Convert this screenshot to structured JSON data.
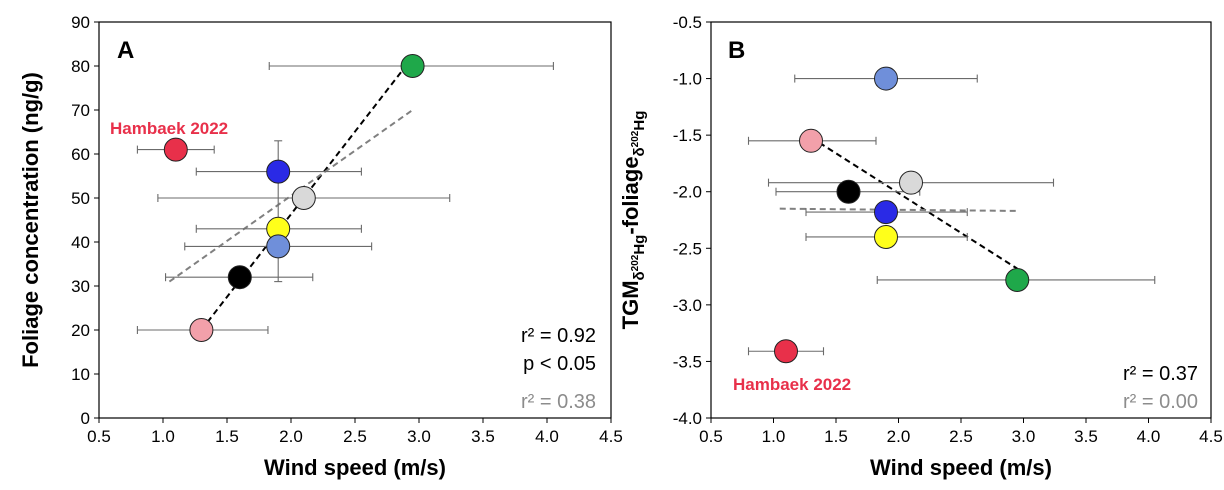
{
  "chart_data": [
    {
      "type": "scatter",
      "panel": "A",
      "xlabel": "Wind speed (m/s)",
      "ylabel": "Foliage concentration (ng/g)",
      "xlim": [
        0.5,
        4.5
      ],
      "ylim": [
        0,
        90
      ],
      "xticks": [
        "0.5",
        "1.0",
        "1.5",
        "2.0",
        "2.5",
        "3.0",
        "3.5",
        "4.0",
        "4.5"
      ],
      "yticks": [
        "0",
        "10",
        "20",
        "30",
        "40",
        "50",
        "60",
        "70",
        "80",
        "90"
      ],
      "points": [
        {
          "x": 2.95,
          "y": 80,
          "xerr": [
            1.83,
            4.05
          ],
          "color": "#1fa84a"
        },
        {
          "x": 1.1,
          "y": 61,
          "xerr": [
            0.8,
            1.4
          ],
          "color": "#e8304a"
        },
        {
          "x": 1.9,
          "y": 56,
          "xerr": [
            1.26,
            2.55
          ],
          "color": "#2a2ae6"
        },
        {
          "x": 2.1,
          "y": 50,
          "xerr": [
            0.96,
            3.24
          ],
          "color": "#d9d9d9"
        },
        {
          "x": 1.9,
          "y": 43,
          "xerr": [
            1.26,
            2.55
          ],
          "color": "#ffff1a"
        },
        {
          "x": 1.9,
          "y": 39,
          "xerr": [
            1.17,
            2.63
          ],
          "yerr": [
            31,
            63
          ],
          "color": "#6f8fda"
        },
        {
          "x": 1.6,
          "y": 32,
          "xerr": [
            1.02,
            2.17
          ],
          "color": "#000000"
        },
        {
          "x": 1.3,
          "y": 20,
          "xerr": [
            0.8,
            1.82
          ],
          "color": "#f2a0aa"
        }
      ],
      "fit_lines": [
        {
          "x": [
            1.3,
            2.95
          ],
          "y": [
            20,
            82
          ],
          "color": "#000000"
        },
        {
          "x": [
            1.05,
            2.95
          ],
          "y": [
            31,
            70
          ],
          "color": "#808080"
        }
      ],
      "annotations": {
        "panel_letter": "A",
        "reference": "Hambaek 2022",
        "r2_black": "r² = 0.92",
        "p_black": "p < 0.05",
        "r2_gray": "r² = 0.38"
      }
    },
    {
      "type": "scatter",
      "panel": "B",
      "xlabel": "Wind speed (m/s)",
      "ylabel_parts": [
        "TGM",
        "δ",
        "202",
        "Hg",
        "-foliage",
        "δ",
        "202",
        "Hg"
      ],
      "xlim": [
        0.5,
        4.5
      ],
      "ylim": [
        -4.0,
        -0.5
      ],
      "xticks": [
        "0.5",
        "1.0",
        "1.5",
        "2.0",
        "2.5",
        "3.0",
        "3.5",
        "4.0",
        "4.5"
      ],
      "yticks": [
        "-4.0",
        "-3.5",
        "-3.0",
        "-2.5",
        "-2.0",
        "-1.5",
        "-1.0",
        "-0.5"
      ],
      "points": [
        {
          "x": 1.9,
          "y": -1.0,
          "xerr": [
            1.17,
            2.63
          ],
          "color": "#6f8fda"
        },
        {
          "x": 1.3,
          "y": -1.55,
          "xerr": [
            0.8,
            1.82
          ],
          "color": "#f2a0aa"
        },
        {
          "x": 2.1,
          "y": -1.92,
          "xerr": [
            0.96,
            3.24
          ],
          "color": "#d9d9d9"
        },
        {
          "x": 1.6,
          "y": -2.0,
          "xerr": [
            1.02,
            2.17
          ],
          "color": "#000000"
        },
        {
          "x": 1.9,
          "y": -2.18,
          "xerr": [
            1.26,
            2.55
          ],
          "color": "#2a2ae6"
        },
        {
          "x": 1.9,
          "y": -2.4,
          "xerr": [
            1.26,
            2.55
          ],
          "color": "#ffff1a"
        },
        {
          "x": 2.95,
          "y": -2.78,
          "xerr": [
            1.83,
            4.05
          ],
          "color": "#1fa84a"
        },
        {
          "x": 1.1,
          "y": -3.41,
          "xerr": [
            0.8,
            1.4
          ],
          "color": "#e8304a"
        }
      ],
      "fit_lines": [
        {
          "x": [
            1.3,
            2.95
          ],
          "y": [
            -1.52,
            -2.68
          ],
          "color": "#000000"
        },
        {
          "x": [
            1.05,
            2.95
          ],
          "y": [
            -2.15,
            -2.17
          ],
          "color": "#808080"
        }
      ],
      "annotations": {
        "panel_letter": "B",
        "reference": "Hambaek 2022",
        "r2_black": "r² = 0.37",
        "r2_gray": "r² = 0.00"
      }
    }
  ],
  "colors": {
    "hambaek_label": "#e8304a",
    "gray_stat": "#8c8c8c",
    "error_bar": "#6b6b6b"
  }
}
